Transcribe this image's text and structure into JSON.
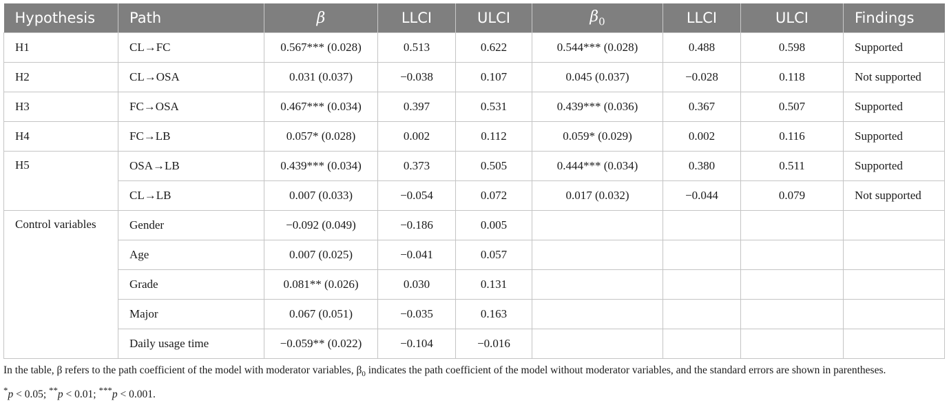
{
  "table": {
    "headers": {
      "hypothesis": "Hypothesis",
      "path": "Path",
      "beta": "β",
      "llci": "LLCI",
      "ulci": "ULCI",
      "beta0_symbol": "β",
      "beta0_subscript": "0",
      "llci2": "LLCI",
      "ulci2": "ULCI",
      "findings": "Findings"
    },
    "rows": [
      {
        "hypothesis": "H1",
        "path": "CL→FC",
        "beta": "0.567*** (0.028)",
        "llci": "0.513",
        "ulci": "0.622",
        "beta0": "0.544*** (0.028)",
        "llci2": "0.488",
        "ulci2": "0.598",
        "findings": "Supported"
      },
      {
        "hypothesis": "H2",
        "path": "CL→OSA",
        "beta": "0.031 (0.037)",
        "llci": "−0.038",
        "ulci": "0.107",
        "beta0": "0.045 (0.037)",
        "llci2": "−0.028",
        "ulci2": "0.118",
        "findings": "Not supported"
      },
      {
        "hypothesis": "H3",
        "path": "FC→OSA",
        "beta": "0.467*** (0.034)",
        "llci": "0.397",
        "ulci": "0.531",
        "beta0": "0.439*** (0.036)",
        "llci2": "0.367",
        "ulci2": "0.507",
        "findings": "Supported"
      },
      {
        "hypothesis": "H4",
        "path": "FC→LB",
        "beta": "0.057* (0.028)",
        "llci": "0.002",
        "ulci": "0.112",
        "beta0": "0.059* (0.029)",
        "llci2": "0.002",
        "ulci2": "0.116",
        "findings": "Supported"
      },
      {
        "hypothesis": "H5",
        "path": "OSA→LB",
        "beta": "0.439*** (0.034)",
        "llci": "0.373",
        "ulci": "0.505",
        "beta0": "0.444*** (0.034)",
        "llci2": "0.380",
        "ulci2": "0.511",
        "findings": "Supported"
      },
      {
        "hypothesis": "",
        "path": "CL→LB",
        "beta": "0.007 (0.033)",
        "llci": "−0.054",
        "ulci": "0.072",
        "beta0": "0.017 (0.032)",
        "llci2": "−0.044",
        "ulci2": "0.079",
        "findings": "Not supported"
      }
    ],
    "control_label": "Control variables",
    "control_rows": [
      {
        "path": "Gender",
        "beta": "−0.092 (0.049)",
        "llci": "−0.186",
        "ulci": "0.005"
      },
      {
        "path": "Age",
        "beta": "0.007 (0.025)",
        "llci": "−0.041",
        "ulci": "0.057"
      },
      {
        "path": "Grade",
        "beta": "0.081** (0.026)",
        "llci": "0.030",
        "ulci": "0.131"
      },
      {
        "path": "Major",
        "beta": "0.067 (0.051)",
        "llci": "−0.035",
        "ulci": "0.163"
      },
      {
        "path": "Daily usage time",
        "beta": "−0.059** (0.022)",
        "llci": "−0.104",
        "ulci": "−0.016"
      }
    ]
  },
  "footnote": {
    "note_part1": "In the table, β refers to the path coefficient of the model with moderator variables, β",
    "note_subscript": "0",
    "note_part2": " indicates the path coefficient of the model without moderator variables, and the standard errors are shown in parentheses.",
    "sig_1_stars": "*",
    "sig_1_text": " < 0.05; ",
    "sig_2_stars": "**",
    "sig_2_text": " < 0.01; ",
    "sig_3_stars": "***",
    "sig_3_text": " < 0.001.",
    "sig_p": "p"
  }
}
